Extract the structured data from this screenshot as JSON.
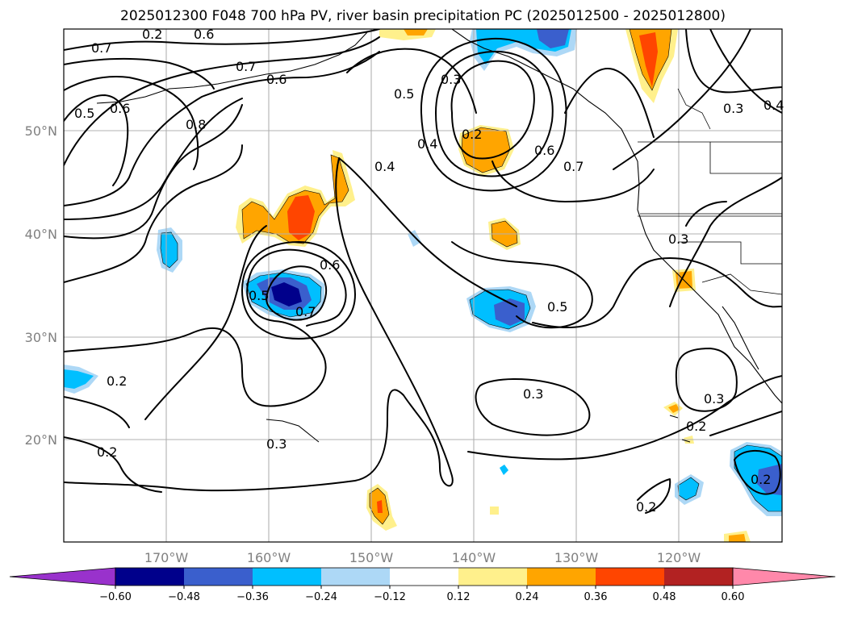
{
  "title": "2025012300 F048 700 hPa PV, river basin precipitation PC (2025012500 - 2025012800)",
  "map": {
    "lon_labels": [
      "170°W",
      "160°W",
      "150°W",
      "140°W",
      "130°W",
      "120°W"
    ],
    "lat_labels": [
      "50°N",
      "40°N",
      "30°N",
      "20°N"
    ],
    "contour_labels": [
      "0.7",
      "0.6",
      "0.7",
      "0.6",
      "0.5",
      "0.6",
      "0.8",
      "0.5",
      "0.3",
      "0.4",
      "0.2",
      "0.6",
      "0.7",
      "0.3",
      "0.4",
      "0.4",
      "0.6",
      "0.5",
      "0.7",
      "0.5",
      "0.3",
      "0.3",
      "0.2",
      "0.2",
      "0.3",
      "0.2",
      "0.2",
      "0.2",
      "0.3",
      "0.2"
    ]
  },
  "colorbar": {
    "tick_labels": [
      "−0.60",
      "−0.48",
      "−0.36",
      "−0.24",
      "−0.12",
      "0.12",
      "0.24",
      "0.36",
      "0.48",
      "0.60"
    ],
    "colors": [
      "#9932cc",
      "#00008b",
      "#3a5fcd",
      "#00bfff",
      "#add8f6",
      "#ffffff",
      "#fff08c",
      "#ffa500",
      "#ff4500",
      "#b22222",
      "#ff88aa"
    ]
  }
}
